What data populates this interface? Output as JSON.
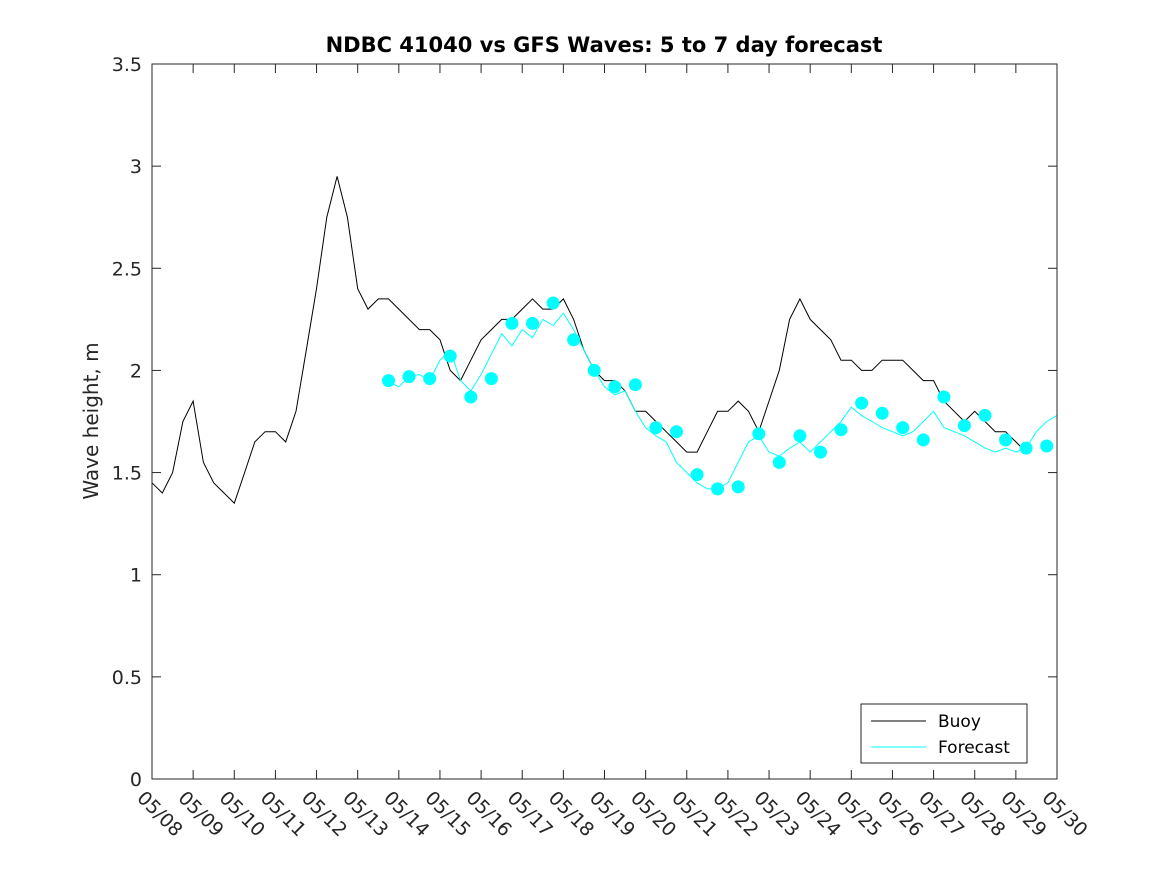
{
  "chart_data": {
    "type": "line",
    "title": "NDBC 41040 vs GFS Waves: 5 to 7 day forecast",
    "xlabel": "",
    "ylabel": "Wave height, m",
    "xlim_day": [
      8,
      30
    ],
    "ylim": [
      0,
      3.5
    ],
    "y_ticks": [
      "0",
      "0.5",
      "1",
      "1.5",
      "2",
      "2.5",
      "3",
      "3.5"
    ],
    "x_ticks": [
      "05/08",
      "05/09",
      "05/10",
      "05/11",
      "05/12",
      "05/13",
      "05/14",
      "05/15",
      "05/16",
      "05/17",
      "05/18",
      "05/19",
      "05/20",
      "05/21",
      "05/22",
      "05/23",
      "05/24",
      "05/25",
      "05/26",
      "05/27",
      "05/28",
      "05/29",
      "05/30"
    ],
    "grid": false,
    "legend_position": "bottom-right",
    "series": [
      {
        "name": "Buoy",
        "color": "#000000",
        "x": [
          8.0,
          8.25,
          8.5,
          8.75,
          9.0,
          9.25,
          9.5,
          9.75,
          10.0,
          10.25,
          10.5,
          10.75,
          11.0,
          11.25,
          11.5,
          11.75,
          12.0,
          12.25,
          12.5,
          12.75,
          13.0,
          13.25,
          13.5,
          13.75,
          14.0,
          14.25,
          14.5,
          14.75,
          15.0,
          15.25,
          15.5,
          15.75,
          16.0,
          16.25,
          16.5,
          16.75,
          17.0,
          17.25,
          17.5,
          17.75,
          18.0,
          18.25,
          18.5,
          18.75,
          19.0,
          19.25,
          19.5,
          19.75,
          20.0,
          20.25,
          20.5,
          20.75,
          21.0,
          21.25,
          21.5,
          21.75,
          22.0,
          22.25,
          22.5,
          22.75,
          23.0,
          23.25,
          23.5,
          23.75,
          24.0,
          24.25,
          24.5,
          24.75,
          25.0,
          25.25,
          25.5,
          25.75,
          26.0,
          26.25,
          26.5,
          26.75,
          27.0,
          27.25,
          27.5,
          27.75,
          28.0,
          28.25,
          28.5,
          28.75,
          29.0,
          29.25
        ],
        "values": [
          1.45,
          1.4,
          1.5,
          1.75,
          1.85,
          1.55,
          1.45,
          1.4,
          1.35,
          1.5,
          1.65,
          1.7,
          1.7,
          1.65,
          1.8,
          2.1,
          2.4,
          2.75,
          2.95,
          2.75,
          2.4,
          2.3,
          2.35,
          2.35,
          2.3,
          2.25,
          2.2,
          2.2,
          2.15,
          2.0,
          1.95,
          2.05,
          2.15,
          2.2,
          2.25,
          2.25,
          2.3,
          2.35,
          2.3,
          2.3,
          2.35,
          2.25,
          2.1,
          2.0,
          1.95,
          1.95,
          1.9,
          1.8,
          1.8,
          1.75,
          1.7,
          1.65,
          1.6,
          1.6,
          1.7,
          1.8,
          1.8,
          1.85,
          1.8,
          1.7,
          1.85,
          2.0,
          2.25,
          2.35,
          2.25,
          2.2,
          2.15,
          2.05,
          2.05,
          2.0,
          2.0,
          2.05,
          2.05,
          2.05,
          2.0,
          1.95,
          1.95,
          1.85,
          1.8,
          1.75,
          1.8,
          1.75,
          1.7,
          1.7,
          1.65,
          1.6
        ]
      },
      {
        "name": "Forecast",
        "color": "#00ffff",
        "x": [
          13.7,
          14.0,
          14.25,
          14.5,
          14.75,
          15.0,
          15.25,
          15.5,
          15.75,
          16.0,
          16.25,
          16.5,
          16.75,
          17.0,
          17.25,
          17.5,
          17.75,
          18.0,
          18.25,
          18.5,
          18.75,
          19.0,
          19.25,
          19.5,
          19.75,
          20.0,
          20.25,
          20.5,
          20.75,
          21.0,
          21.25,
          21.5,
          21.75,
          22.0,
          22.25,
          22.5,
          22.75,
          23.0,
          23.25,
          23.5,
          23.75,
          24.0,
          24.25,
          24.5,
          24.75,
          25.0,
          25.25,
          25.5,
          25.75,
          26.0,
          26.25,
          26.5,
          26.75,
          27.0,
          27.25,
          27.5,
          27.75,
          28.0,
          28.25,
          28.5,
          28.75,
          29.0,
          29.25,
          29.5,
          29.75,
          30.0
        ],
        "values": [
          1.95,
          1.92,
          1.97,
          1.98,
          1.95,
          2.05,
          2.1,
          1.95,
          1.9,
          1.98,
          2.08,
          2.18,
          2.12,
          2.2,
          2.16,
          2.25,
          2.22,
          2.28,
          2.2,
          2.1,
          2.0,
          1.92,
          1.88,
          1.9,
          1.8,
          1.72,
          1.68,
          1.65,
          1.55,
          1.5,
          1.45,
          1.42,
          1.42,
          1.45,
          1.55,
          1.65,
          1.68,
          1.6,
          1.58,
          1.62,
          1.65,
          1.6,
          1.65,
          1.7,
          1.75,
          1.82,
          1.78,
          1.75,
          1.72,
          1.7,
          1.68,
          1.7,
          1.75,
          1.8,
          1.72,
          1.7,
          1.68,
          1.65,
          1.62,
          1.6,
          1.62,
          1.6,
          1.62,
          1.7,
          1.75,
          1.78
        ],
        "markers_x": [
          13.75,
          14.25,
          14.75,
          15.25,
          15.75,
          16.25,
          16.75,
          17.25,
          17.75,
          18.25,
          18.75,
          19.25,
          19.75,
          20.25,
          20.75,
          21.25,
          21.75,
          22.25,
          22.75,
          23.25,
          23.75,
          24.25,
          24.75,
          25.25,
          25.75,
          26.25,
          26.75,
          27.25,
          27.75,
          28.25,
          28.75,
          29.25,
          29.75
        ],
        "markers_y": [
          1.95,
          1.97,
          1.96,
          2.07,
          1.87,
          1.96,
          2.23,
          2.23,
          2.33,
          2.15,
          2.0,
          1.92,
          1.93,
          1.72,
          1.7,
          1.49,
          1.42,
          1.43,
          1.69,
          1.55,
          1.68,
          1.6,
          1.71,
          1.84,
          1.79,
          1.72,
          1.66,
          1.87,
          1.73,
          1.78,
          1.66,
          1.62,
          1.63
        ]
      }
    ]
  }
}
